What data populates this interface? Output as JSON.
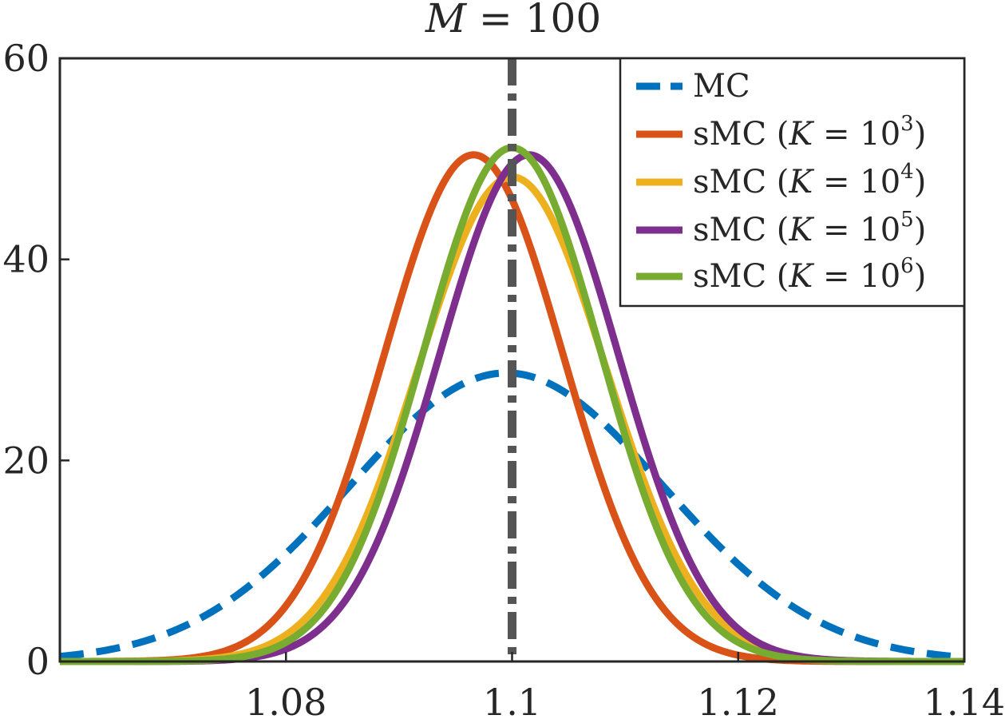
{
  "chart_data": {
    "type": "line",
    "title": "M = 100",
    "title_var": "M",
    "title_rest": " = 100",
    "xlabel": "",
    "ylabel": "",
    "xlim": [
      1.06,
      1.14
    ],
    "ylim": [
      0,
      60
    ],
    "xticks": [
      1.08,
      1.1,
      1.12,
      1.14
    ],
    "xtick_labels": [
      "1.08",
      "1.1",
      "1.12",
      "1.14"
    ],
    "yticks": [
      0,
      20,
      40,
      60
    ],
    "ytick_labels": [
      "0",
      "20",
      "40",
      "60"
    ],
    "grid": false,
    "legend_position": "top-right",
    "reference_line": {
      "x": 1.1,
      "style": "dash-dot",
      "color": "#555555"
    },
    "series": [
      {
        "name": "MC",
        "legend_label": "MC",
        "style": "dashed",
        "color": "#0072BD",
        "mean": 1.0995,
        "sd": 0.0139,
        "peak": 28.7
      },
      {
        "name": "sMC (K = 10^3)",
        "legend_prefix": "sMC (",
        "legend_var": "K",
        "legend_mid": " = 10",
        "legend_exp": "3",
        "legend_suffix": ")",
        "style": "solid",
        "color": "#D95319",
        "mean": 1.0966,
        "sd": 0.0079,
        "peak": 50.4
      },
      {
        "name": "sMC (K = 10^4)",
        "legend_prefix": "sMC (",
        "legend_var": "K",
        "legend_mid": " = 10",
        "legend_exp": "4",
        "legend_suffix": ")",
        "style": "solid",
        "color": "#EDB120",
        "mean": 1.1,
        "sd": 0.0083,
        "peak": 48.2
      },
      {
        "name": "sMC (K = 10^5)",
        "legend_prefix": "sMC (",
        "legend_var": "K",
        "legend_mid": " = 10",
        "legend_exp": "5",
        "legend_suffix": ")",
        "style": "solid",
        "color": "#7E2F8E",
        "mean": 1.1015,
        "sd": 0.0079,
        "peak": 50.4
      },
      {
        "name": "sMC (K = 10^6)",
        "legend_prefix": "sMC (",
        "legend_var": "K",
        "legend_mid": " = 10",
        "legend_exp": "6",
        "legend_suffix": ")",
        "style": "solid",
        "color": "#77AC30",
        "mean": 1.1,
        "sd": 0.0078,
        "peak": 51.1
      }
    ]
  }
}
